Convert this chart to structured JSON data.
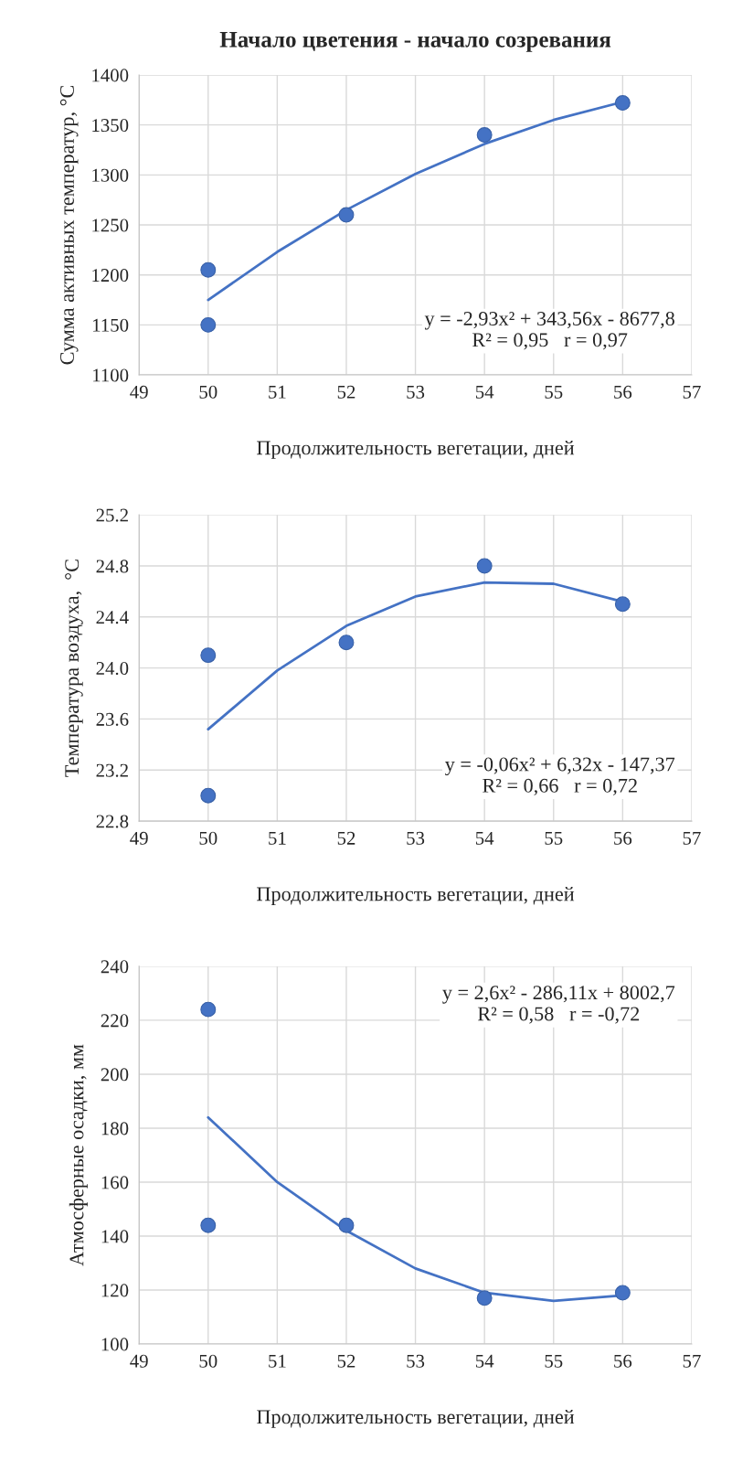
{
  "chart_data": [
    {
      "type": "scatter",
      "title": "Начало цветения - начало созревания",
      "xlabel": "Продолжительность вегетации, дней",
      "ylabel": "Сумма активных температур, °C",
      "xlim": [
        49,
        57
      ],
      "xticks": [
        49,
        50,
        51,
        52,
        53,
        54,
        55,
        56,
        57
      ],
      "ylim": [
        1100,
        1400
      ],
      "yticks": [
        1100,
        1150,
        1200,
        1250,
        1300,
        1350,
        1400
      ],
      "grid": true,
      "series": [
        {
          "marker": "circle",
          "color": "#4472c4",
          "x": [
            50,
            50,
            52,
            54,
            56
          ],
          "values": [
            1205,
            1150,
            1260,
            1340,
            1372
          ]
        },
        {
          "type": "line",
          "color": "#4472c4",
          "marker": "none",
          "line_style": "solid",
          "x": [
            50,
            51,
            52,
            53,
            54,
            55,
            56
          ],
          "values": [
            1175,
            1223,
            1265,
            1301,
            1331,
            1355,
            1373
          ]
        }
      ],
      "annotations": [
        "y = -2,93x² + 343,56x - 8677,8",
        "R² = 0,95   r = 0,97"
      ]
    },
    {
      "type": "scatter",
      "xlabel": "Продолжительность вегетации, дней",
      "ylabel": "Температура воздуха,  °C",
      "xlim": [
        49,
        57
      ],
      "xticks": [
        49,
        50,
        51,
        52,
        53,
        54,
        55,
        56,
        57
      ],
      "ylim": [
        22.8,
        25.2
      ],
      "yticks": [
        {
          "value": 22.8,
          "label": "22.8"
        },
        {
          "value": 23.2,
          "label": "23.2"
        },
        {
          "value": 23.6,
          "label": "23.6"
        },
        {
          "value": 24.0,
          "label": "24.0"
        },
        {
          "value": 24.4,
          "label": "24.4"
        },
        {
          "value": 24.8,
          "label": "24.8"
        },
        {
          "value": 25.2,
          "label": "25.2"
        }
      ],
      "grid": true,
      "series": [
        {
          "marker": "circle",
          "color": "#4472c4",
          "x": [
            50,
            50,
            52,
            54,
            56
          ],
          "values": [
            24.1,
            23.0,
            24.2,
            24.8,
            24.5
          ]
        },
        {
          "type": "line",
          "color": "#4472c4",
          "marker": "none",
          "line_style": "solid",
          "x": [
            50,
            51,
            52,
            53,
            54,
            55,
            56
          ],
          "values": [
            23.52,
            23.98,
            24.33,
            24.56,
            24.67,
            24.66,
            24.52
          ]
        }
      ],
      "annotations": [
        "y = -0,06x² + 6,32x - 147,37",
        "R² = 0,66   r = 0,72"
      ]
    },
    {
      "type": "scatter",
      "xlabel": "Продолжительность вегетации, дней",
      "ylabel": "Атмосферные осадки, мм",
      "xlim": [
        49,
        57
      ],
      "xticks": [
        49,
        50,
        51,
        52,
        53,
        54,
        55,
        56,
        57
      ],
      "ylim": [
        100,
        240
      ],
      "yticks": [
        100,
        120,
        140,
        160,
        180,
        200,
        220,
        240
      ],
      "grid": true,
      "series": [
        {
          "marker": "circle",
          "color": "#4472c4",
          "x": [
            50,
            50,
            52,
            54,
            56
          ],
          "values": [
            224,
            144,
            144,
            117,
            119
          ]
        },
        {
          "type": "line",
          "color": "#4472c4",
          "marker": "none",
          "line_style": "solid",
          "x": [
            50,
            51,
            52,
            53,
            54,
            55,
            56
          ],
          "values": [
            184,
            160,
            142,
            128,
            119,
            116,
            118
          ]
        }
      ],
      "annotations": [
        "y = 2,6x² - 286,11x + 8002,7",
        "R² = 0,58   r = -0,72"
      ]
    }
  ]
}
